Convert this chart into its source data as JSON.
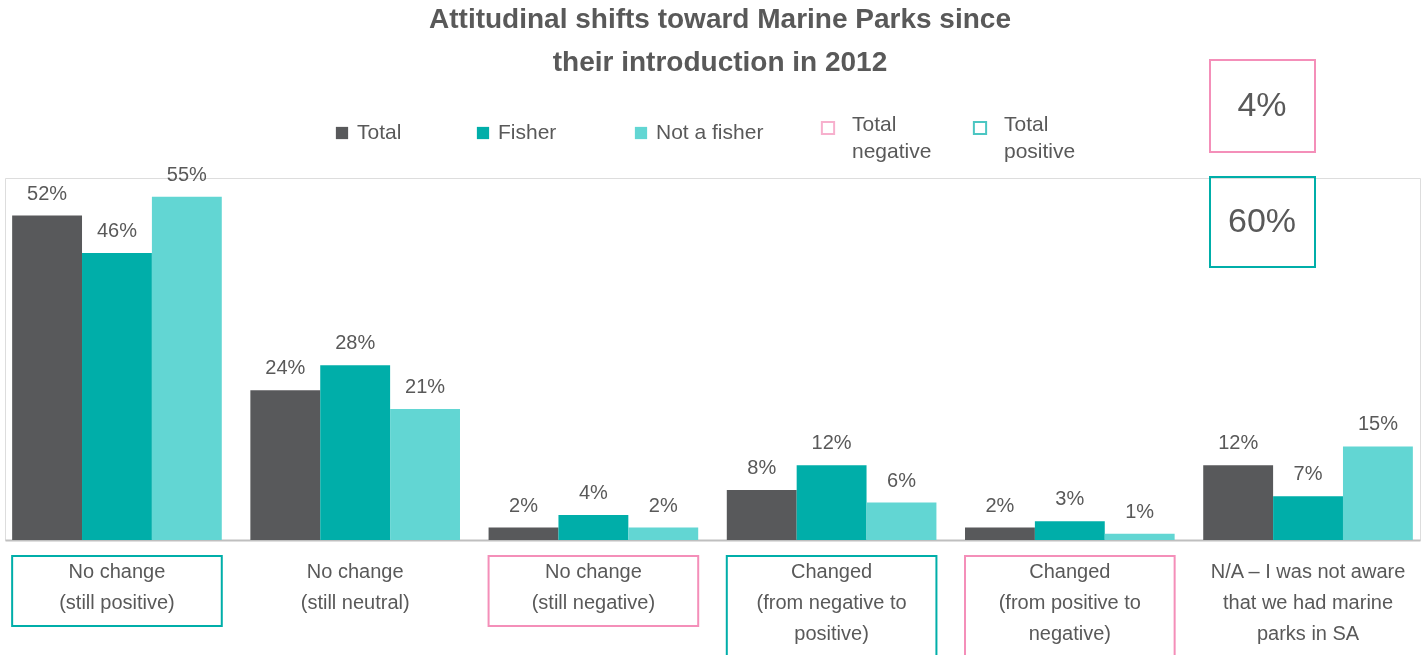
{
  "chart_data": {
    "type": "bar",
    "title": "Attitudinal shifts toward Marine Parks since\ntheir introduction in 2012",
    "categories": [
      "No change\n(still positive)",
      "No change\n(still neutral)",
      "No change\n(still negative)",
      "Changed\n(from negative to\npositive)",
      "Changed\n(from positive to\nnegative)",
      "N/A – I was not aware\nthat we had marine\nparks in SA"
    ],
    "series": [
      {
        "name": "Total",
        "color": "#58595b",
        "values": [
          52,
          24,
          2,
          8,
          2,
          12
        ],
        "value_labels": [
          "52%",
          "24%",
          "2%",
          "8%",
          "2%",
          "12%"
        ]
      },
      {
        "name": "Fisher",
        "color": "#00aea9",
        "values": [
          46,
          28,
          4,
          12,
          3,
          7
        ],
        "value_labels": [
          "46%",
          "28%",
          "4%",
          "12%",
          "3%",
          "7%"
        ]
      },
      {
        "name": "Not a fisher",
        "color": "#62d6d3",
        "values": [
          55,
          21,
          2,
          6,
          1,
          15
        ],
        "value_labels": [
          "55%",
          "21%",
          "2%",
          "6%",
          "1%",
          "15%"
        ]
      }
    ],
    "legend": "top",
    "grid": false,
    "annotations": [
      "Total negative",
      "Total positive",
      "4%",
      "60%"
    ]
  }
}
